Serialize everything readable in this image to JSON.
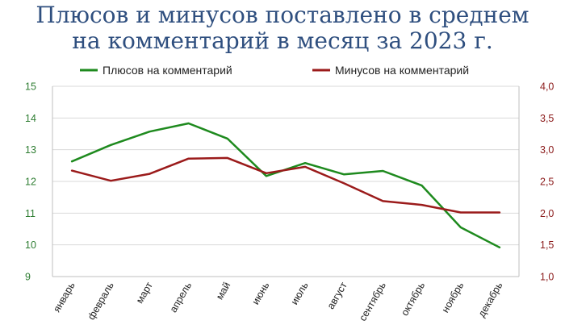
{
  "chart_data": {
    "type": "line",
    "title_lines": [
      "Плюсов и минусов поставлено в среднем",
      "на комментарий в месяц за 2023 г."
    ],
    "categories": [
      "январь",
      "февраль",
      "март",
      "апрель",
      "май",
      "июнь",
      "июль",
      "август",
      "сентябрь",
      "октябрь",
      "ноябрь",
      "декабрь"
    ],
    "series": [
      {
        "name": "Плюсов на комментарий",
        "axis": "left",
        "color": "#1e8a1e",
        "values": [
          12.63,
          13.15,
          13.57,
          13.83,
          13.35,
          12.17,
          12.58,
          12.22,
          12.33,
          11.87,
          10.55,
          9.92
        ]
      },
      {
        "name": "Минусов на комментарий",
        "axis": "right",
        "color": "#9b1b1b",
        "values": [
          2.67,
          2.51,
          2.62,
          2.86,
          2.87,
          2.63,
          2.73,
          2.47,
          2.19,
          2.13,
          2.01,
          2.01
        ]
      }
    ],
    "y_left": {
      "min": 9,
      "max": 15,
      "ticks": [
        "15",
        "14",
        "13",
        "12",
        "11",
        "10",
        "9"
      ],
      "color": "#2e7d32"
    },
    "y_right": {
      "min": 1.0,
      "max": 4.0,
      "ticks": [
        "4,0",
        "3,5",
        "3,0",
        "2,5",
        "2,0",
        "1,5",
        "1,0"
      ],
      "color": "#8b1a1a"
    },
    "grid": true,
    "legend_position": "top"
  }
}
